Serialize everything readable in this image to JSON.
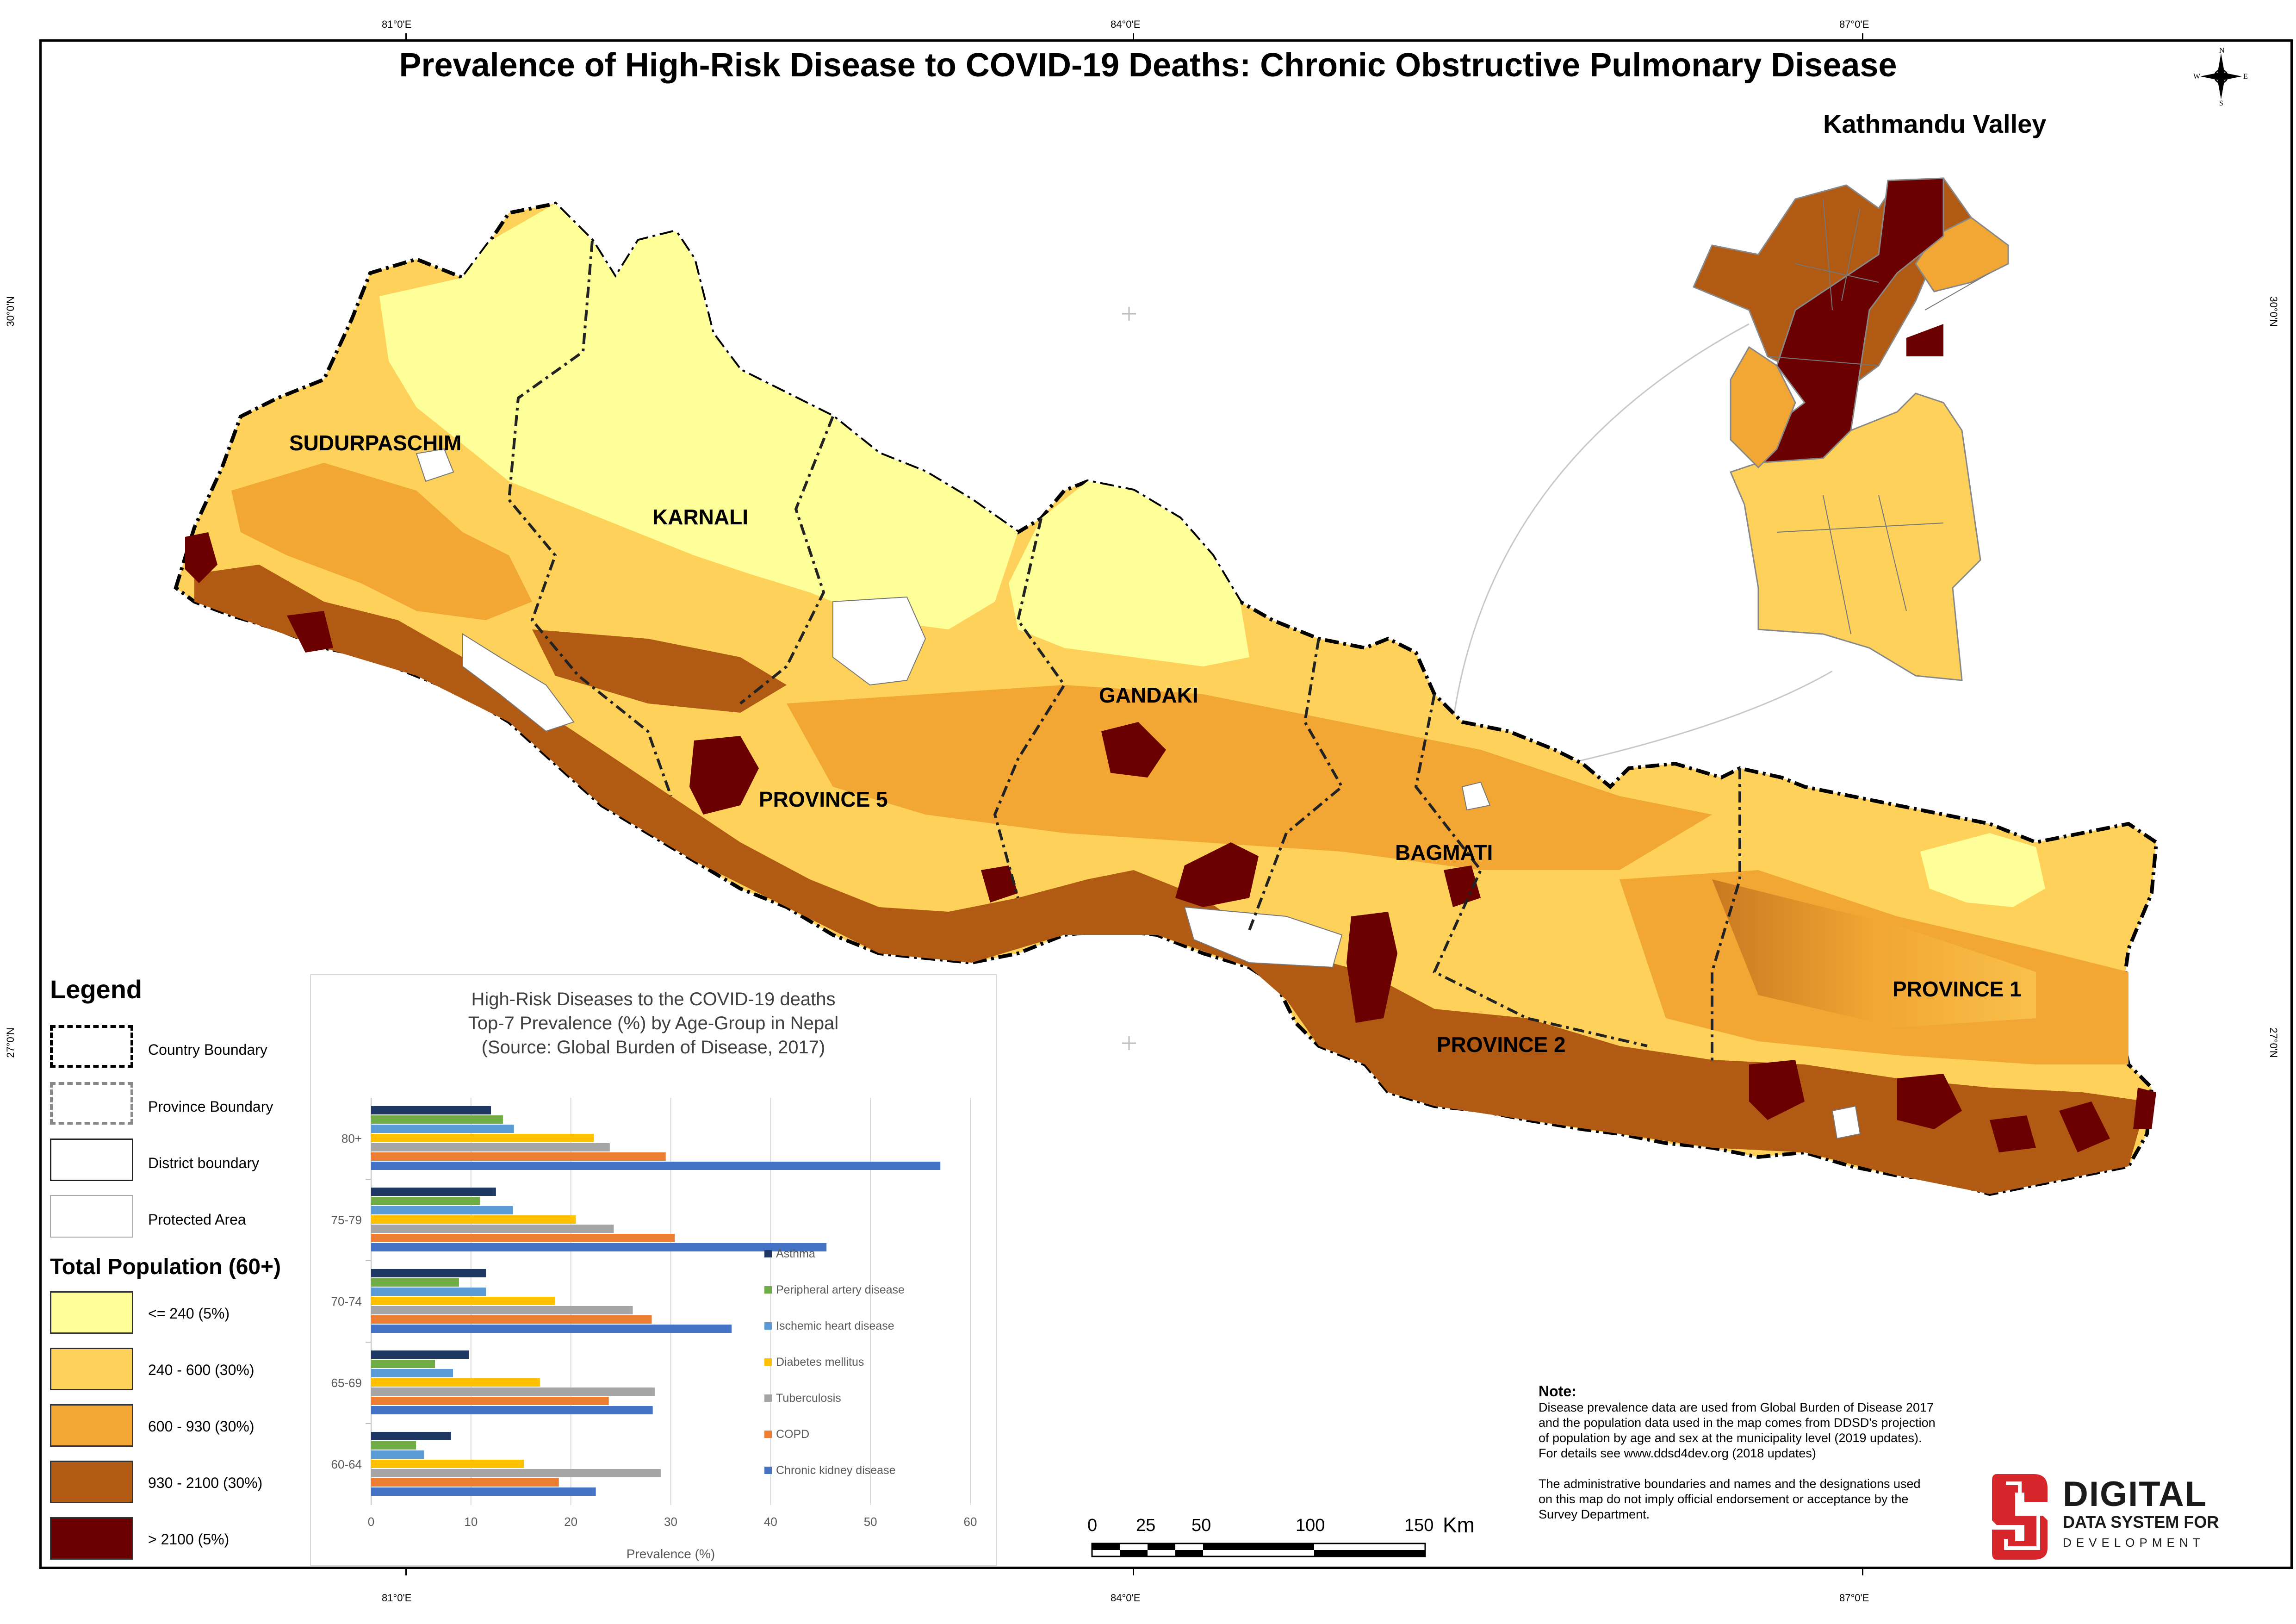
{
  "title": "Prevalence of High-Risk Disease to COVID-19 Deaths: Chronic Obstructive Pulmonary Disease",
  "inset_title": "Kathmandu Valley",
  "graticule": {
    "lon": [
      "81°0'E",
      "84°0'E",
      "87°0'E"
    ],
    "lat": [
      "30°0'N",
      "27°0'N"
    ]
  },
  "compass": {
    "n": "N",
    "s": "S",
    "e": "E",
    "w": "W"
  },
  "provinces": [
    "SUDURPASCHIM",
    "KARNALI",
    "GANDAKI",
    "PROVINCE 5",
    "BAGMATI",
    "PROVINCE 2",
    "PROVINCE 1"
  ],
  "legend": {
    "title": "Legend",
    "boundaries": [
      "Country Boundary",
      "Province Boundary",
      "District boundary",
      "Protected Area"
    ],
    "pop_title": "Total Population (60+)",
    "classes": [
      {
        "label": "<= 240 (5%)",
        "color": "#ffff99"
      },
      {
        "label": "240 - 600 (30%)",
        "color": "#fdd15a"
      },
      {
        "label": "600 - 930 (30%)",
        "color": "#f2a633"
      },
      {
        "label": "930 - 2100 (30%)",
        "color": "#b05a14"
      },
      {
        "label": "> 2100 (5%)",
        "color": "#6b0000"
      }
    ]
  },
  "chart_data": {
    "type": "bar",
    "orientation": "horizontal",
    "title": "High-Risk Diseases to the COVID-19 deaths",
    "subtitle": [
      "Top-7 Prevalence (%) by Age-Group in Nepal",
      "(Source: Global Burden of Disease, 2017)"
    ],
    "xlabel": "Prevalence (%)",
    "xlim": [
      0,
      60
    ],
    "xticks": [
      "0",
      "10",
      "20",
      "30",
      "40",
      "50",
      "60"
    ],
    "categories": [
      "80+",
      "75-79",
      "70-74",
      "65-69",
      "60-64"
    ],
    "series": [
      {
        "name": "Asthma",
        "color": "#203864",
        "values": [
          12,
          12.5,
          11.5,
          9.8,
          8
        ]
      },
      {
        "name": "Peripheral artery disease",
        "color": "#70ad47",
        "values": [
          13.2,
          10.9,
          8.8,
          6.4,
          4.5
        ]
      },
      {
        "name": "Ischemic heart disease",
        "color": "#5b9bd5",
        "values": [
          14.3,
          14.2,
          11.5,
          8.2,
          5.3
        ]
      },
      {
        "name": "Diabetes mellitus",
        "color": "#ffc000",
        "values": [
          22.3,
          20.5,
          18.4,
          16.9,
          15.3
        ]
      },
      {
        "name": "Tuberculosis",
        "color": "#a5a5a5",
        "values": [
          23.9,
          24.3,
          26.2,
          28.4,
          29
        ]
      },
      {
        "name": "COPD",
        "color": "#ed7d31",
        "values": [
          29.5,
          30.4,
          28.1,
          23.8,
          18.8
        ]
      },
      {
        "name": "Chronic kidney disease",
        "color": "#4472c4",
        "values": [
          57,
          45.6,
          36.1,
          28.2,
          22.5
        ]
      }
    ],
    "legend_position": "right"
  },
  "scalebar": {
    "labels": [
      "0",
      "25",
      "50",
      "100",
      "150"
    ],
    "unit": "Km"
  },
  "note": {
    "heading": "Note:",
    "p1": "Disease prevalence data are used from Global Burden of Disease 2017 and the population data used in the map comes from DDSD's projection of population by age and sex at the municipality level (2019 updates). For details see www.ddsd4dev.org (2018 updates)",
    "p2": "The administrative boundaries and names and the designations used on this map do not imply official endorsement or acceptance by the Survey Department."
  },
  "logo": {
    "line1": "DIGITAL",
    "line2": "DATA SYSTEM FOR",
    "line3": "DEVELOPMENT"
  }
}
